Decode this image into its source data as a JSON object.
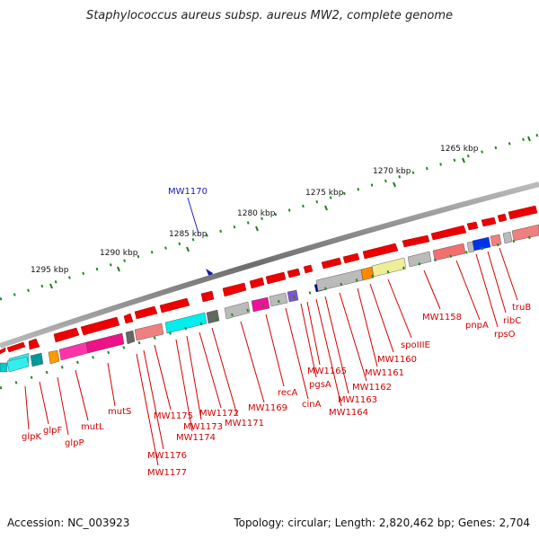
{
  "title": "Staphylococcus aureus subsp. aureus MW2, complete genome",
  "footer": {
    "accession": "Accession: NC_003923",
    "stats": "Topology: circular; Length: 2,820,462 bp; Genes: 2,704"
  },
  "kbp_labels": [
    "1265 kbp",
    "1270 kbp",
    "1275 kbp",
    "1280 kbp",
    "1285 kbp",
    "1290 kbp",
    "1295 kbp"
  ],
  "highlight": {
    "label": "MW1170",
    "color": "#0000cc"
  },
  "gene_labels": [
    "truB",
    "ribC",
    "rpsO",
    "pnpA",
    "MW1158",
    "spoIIIE",
    "MW1160",
    "MW1161",
    "MW1162",
    "MW1163",
    "MW1164",
    "MW1165",
    "pgsA",
    "cinA",
    "recA",
    "MW1169",
    "MW1171",
    "MW1172",
    "MW1173",
    "MW1174",
    "MW1175",
    "MW1176",
    "MW1177",
    "mutS",
    "mutL",
    "glpP",
    "glpF",
    "glpK"
  ],
  "colors": {
    "label_red": "#d40000",
    "arrow_red": "#ee0000",
    "backbone": "#888888",
    "tick_green": "#006600"
  }
}
